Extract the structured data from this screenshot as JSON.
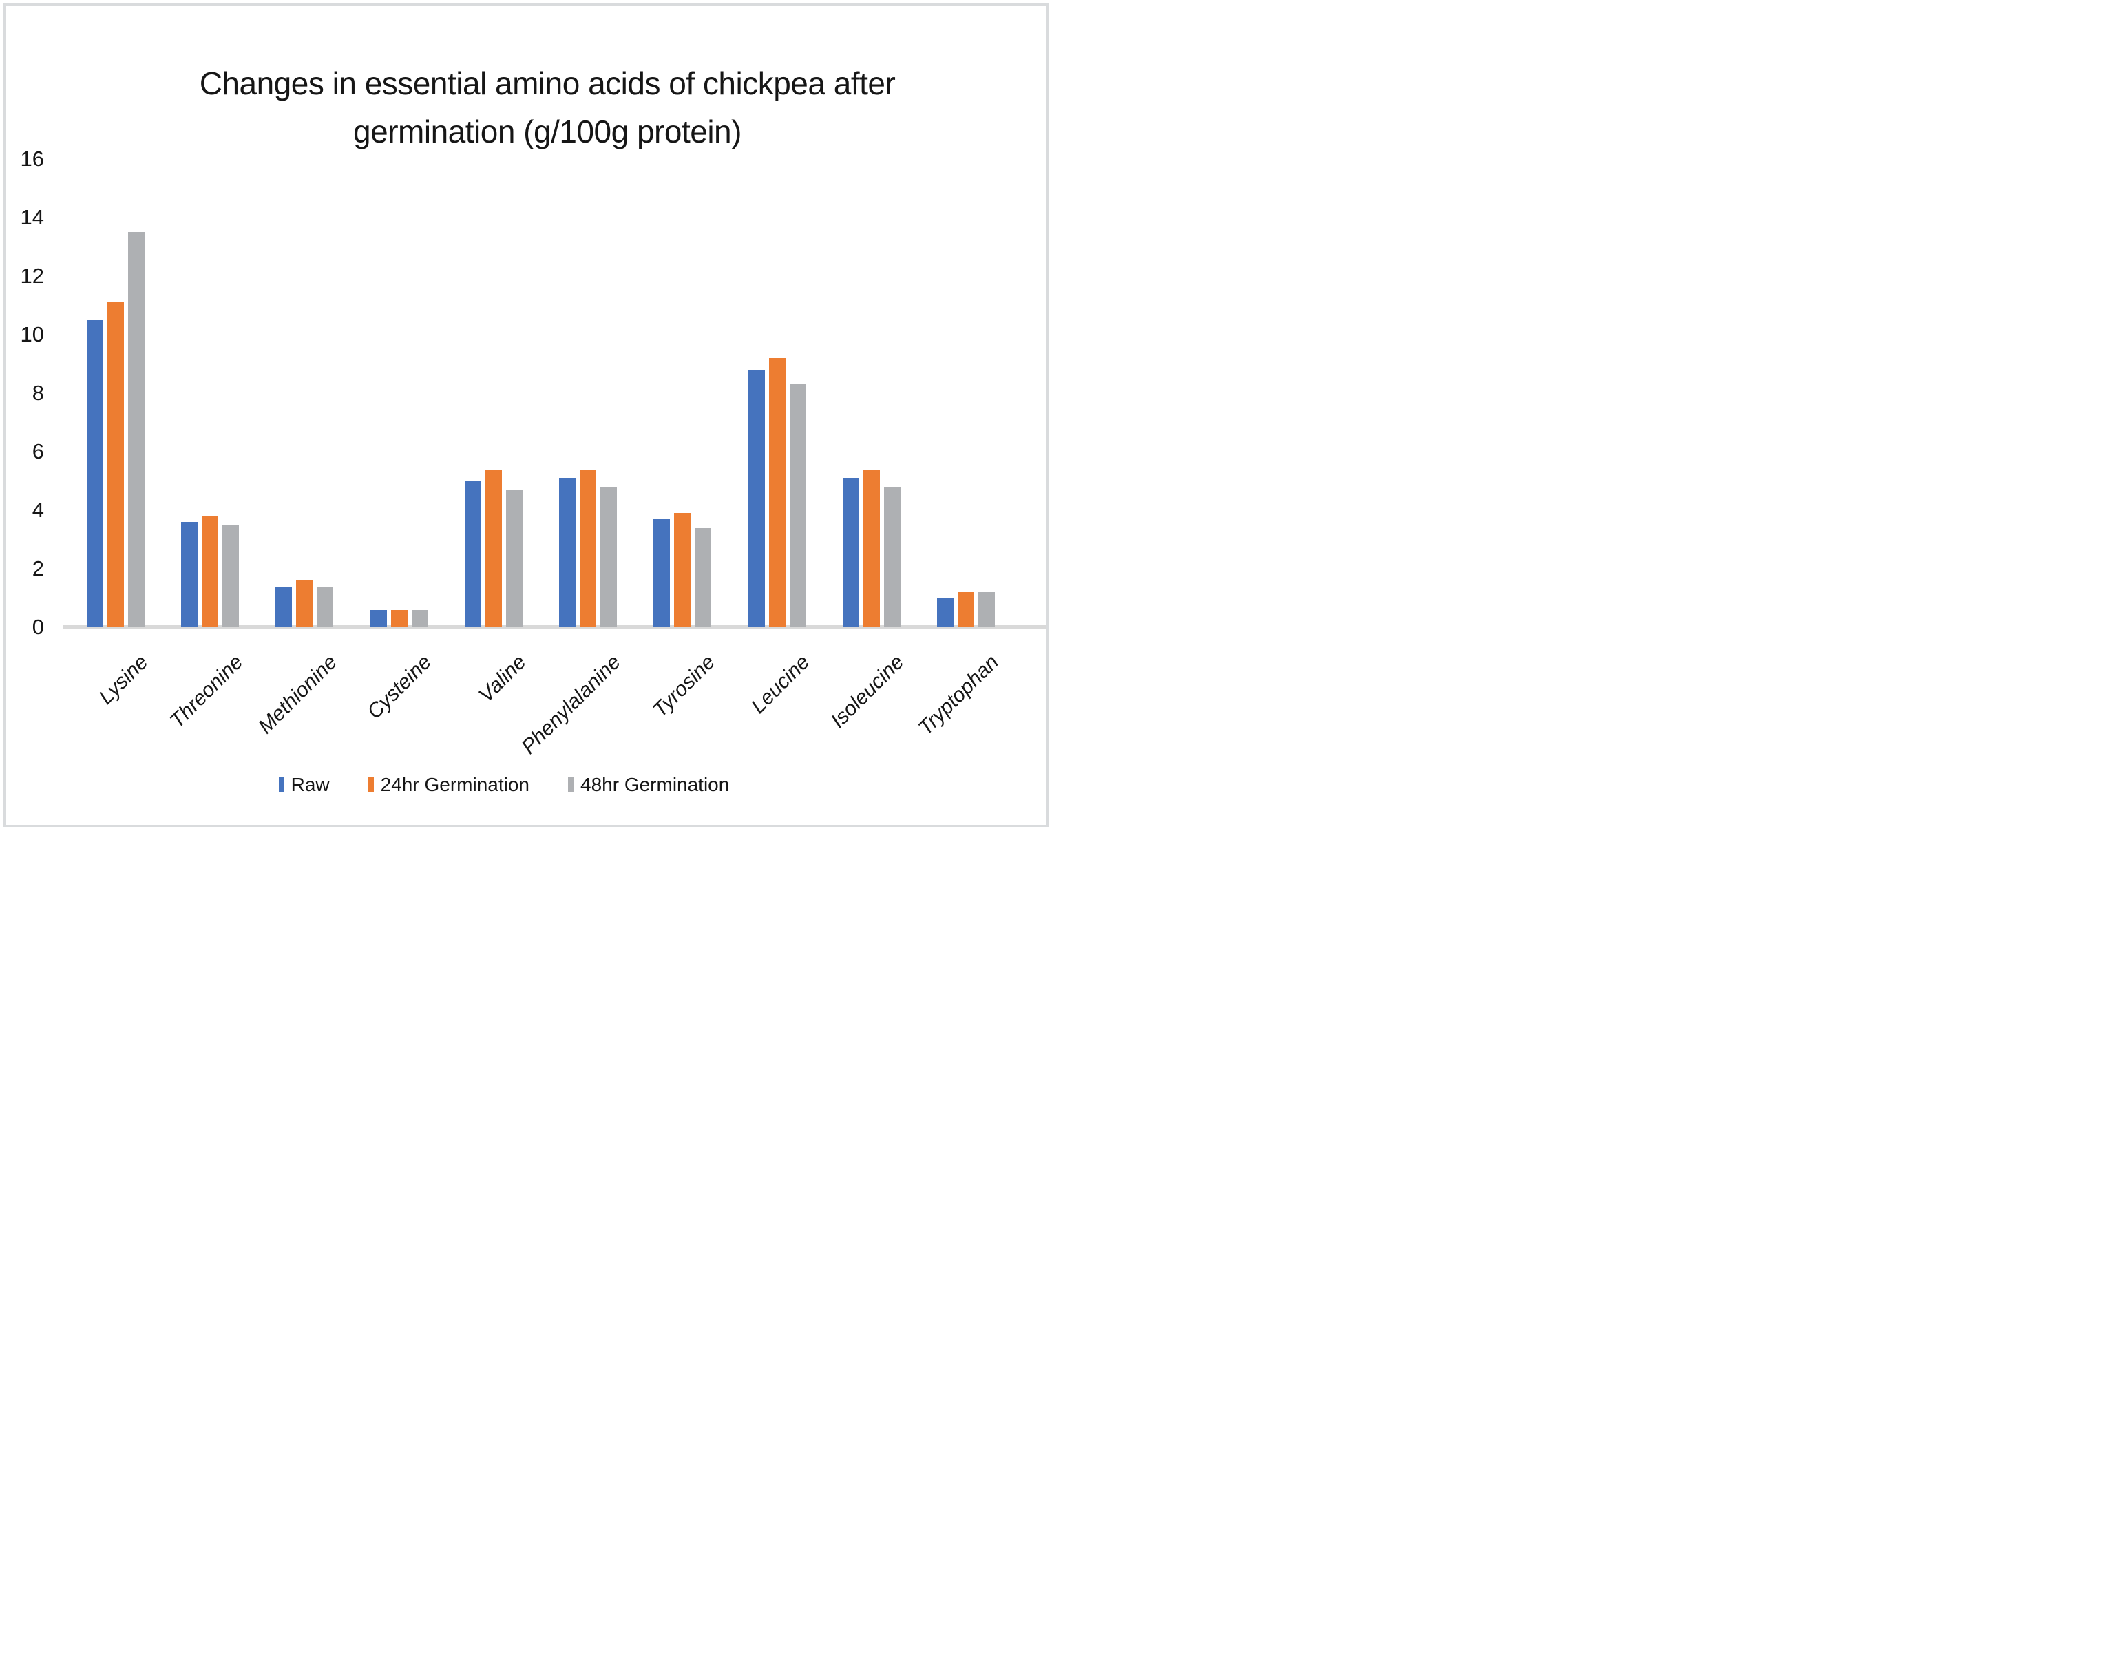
{
  "title": {
    "line1": "Changes in essential amino acids of chickpea after",
    "line2": "germination (g/100g protein)"
  },
  "colors": {
    "raw_blue": "#4573be",
    "germination_24hr_orange": "#ed7d31",
    "germination_48hr_gray": "#aeb0b3",
    "axis_line": "#d9d9d9",
    "frame_border": "#d9dbdd",
    "text": "#161616"
  },
  "chart_data": {
    "type": "bar",
    "title": "Changes in essential amino acids of chickpea after germination (g/100g protein)",
    "categories": [
      "Lysine",
      "Threonine",
      "Methionine",
      "Cysteine",
      "Valine",
      "Phenylalanine",
      "Tyrosine",
      "Leucine",
      "Isoleucine",
      "Tryptophan"
    ],
    "series": [
      {
        "name": "Raw",
        "color": "#4573be",
        "values": [
          10.5,
          3.6,
          1.4,
          0.6,
          5.0,
          5.1,
          3.7,
          8.8,
          5.1,
          1.0
        ]
      },
      {
        "name": "24hr Germination",
        "color": "#ed7d31",
        "values": [
          11.1,
          3.8,
          1.6,
          0.6,
          5.4,
          5.4,
          3.9,
          9.2,
          5.4,
          1.2
        ]
      },
      {
        "name": "48hr Germination",
        "color": "#aeb0b3",
        "values": [
          13.5,
          3.5,
          1.4,
          0.6,
          4.7,
          4.8,
          3.4,
          8.3,
          4.8,
          1.2
        ]
      }
    ],
    "xlabel": "",
    "ylabel": "",
    "ylim": [
      0,
      16
    ],
    "ytick_step": 2,
    "grid": false,
    "legend_position": "bottom",
    "category_label_style": "italic, rotated 45 degrees",
    "y_axis_ticks": [
      0,
      2,
      4,
      6,
      8,
      10,
      12,
      14,
      16
    ]
  }
}
